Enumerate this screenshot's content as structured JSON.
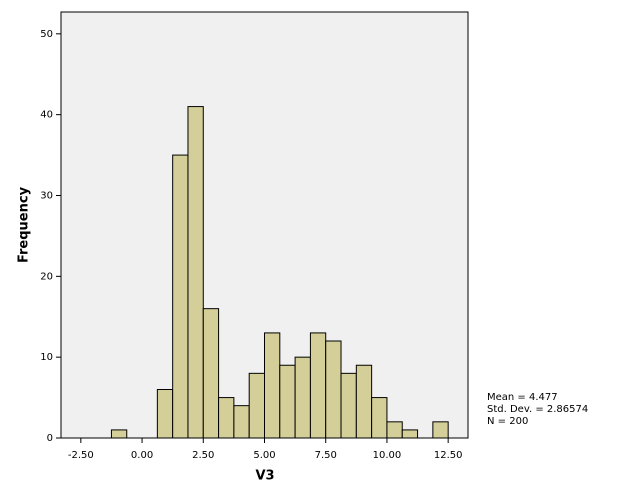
{
  "chart_data": {
    "type": "histogram",
    "x_label": "V3",
    "y_label": "Frequency",
    "bins": [
      -1.25,
      -0.625,
      0,
      0.625,
      1.25,
      1.875,
      2.5,
      3.125,
      3.75,
      4.375,
      5,
      5.625,
      6.25,
      6.875,
      7.5,
      8.125,
      8.75,
      9.375,
      10,
      10.625,
      11.25,
      11.875,
      12.5
    ],
    "values": [
      1,
      0,
      0,
      6,
      35,
      41,
      16,
      5,
      4,
      8,
      13,
      9,
      10,
      13,
      12,
      8,
      9,
      5,
      2,
      1,
      0,
      2
    ],
    "color": "#d4cf98",
    "edge_color": "#000000",
    "background": "#f0f0f0",
    "xlim": [
      -3.31,
      13.31
    ],
    "xticks": [
      {
        "value": -2.5,
        "label": "-2.50"
      },
      {
        "value": 0,
        "label": "0.00"
      },
      {
        "value": 2.5,
        "label": "2.50"
      },
      {
        "value": 5,
        "label": "5.00"
      },
      {
        "value": 7.5,
        "label": "7.50"
      },
      {
        "value": 10,
        "label": "10.00"
      },
      {
        "value": 12.5,
        "label": "12.50"
      }
    ],
    "ylim": [
      0,
      52.7
    ],
    "yticks": [
      0,
      10,
      20,
      30,
      40,
      50
    ],
    "annotations": [
      "Mean = 4.477",
      "Std. Dev. = 2.86574",
      "N = 200"
    ]
  }
}
